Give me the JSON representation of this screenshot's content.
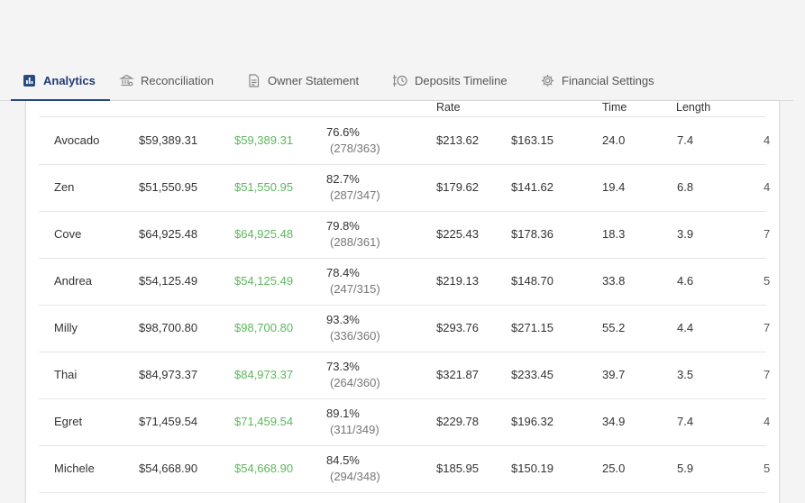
{
  "tabs": [
    {
      "label": "Analytics",
      "icon": "bar-chart-icon",
      "active": true
    },
    {
      "label": "Reconciliation",
      "icon": "bank-icon",
      "active": false
    },
    {
      "label": "Owner Statement",
      "icon": "document-icon",
      "active": false
    },
    {
      "label": "Deposits Timeline",
      "icon": "timeline-icon",
      "active": false
    },
    {
      "label": "Financial Settings",
      "icon": "gear-icon",
      "active": false
    }
  ],
  "table": {
    "headers": {
      "rate": "Rate",
      "time": "Time",
      "length": "Length"
    },
    "rows": [
      {
        "name": "Avocado",
        "revenue": "$59,389.31",
        "net": "$59,389.31",
        "occ": "76.6%",
        "occ_detail": "(278/363)",
        "rate": "$213.62",
        "revpar": "$163.15",
        "time": "24.0",
        "length": "7.4",
        "extra": "4"
      },
      {
        "name": "Zen",
        "revenue": "$51,550.95",
        "net": "$51,550.95",
        "occ": "82.7%",
        "occ_detail": "(287/347)",
        "rate": "$179.62",
        "revpar": "$141.62",
        "time": "19.4",
        "length": "6.8",
        "extra": "4"
      },
      {
        "name": "Cove",
        "revenue": "$64,925.48",
        "net": "$64,925.48",
        "occ": "79.8%",
        "occ_detail": "(288/361)",
        "rate": "$225.43",
        "revpar": "$178.36",
        "time": "18.3",
        "length": "3.9",
        "extra": "7"
      },
      {
        "name": "Andrea",
        "revenue": "$54,125.49",
        "net": "$54,125.49",
        "occ": "78.4%",
        "occ_detail": "(247/315)",
        "rate": "$219.13",
        "revpar": "$148.70",
        "time": "33.8",
        "length": "4.6",
        "extra": "5"
      },
      {
        "name": "Milly",
        "revenue": "$98,700.80",
        "net": "$98,700.80",
        "occ": "93.3%",
        "occ_detail": "(336/360)",
        "rate": "$293.76",
        "revpar": "$271.15",
        "time": "55.2",
        "length": "4.4",
        "extra": "7"
      },
      {
        "name": "Thai",
        "revenue": "$84,973.37",
        "net": "$84,973.37",
        "occ": "73.3%",
        "occ_detail": "(264/360)",
        "rate": "$321.87",
        "revpar": "$233.45",
        "time": "39.7",
        "length": "3.5",
        "extra": "7"
      },
      {
        "name": "Egret",
        "revenue": "$71,459.54",
        "net": "$71,459.54",
        "occ": "89.1%",
        "occ_detail": "(311/349)",
        "rate": "$229.78",
        "revpar": "$196.32",
        "time": "34.9",
        "length": "7.4",
        "extra": "4"
      },
      {
        "name": "Michele",
        "revenue": "$54,668.90",
        "net": "$54,668.90",
        "occ": "84.5%",
        "occ_detail": "(294/348)",
        "rate": "$185.95",
        "revpar": "$150.19",
        "time": "25.0",
        "length": "5.9",
        "extra": "5"
      }
    ]
  },
  "colors": {
    "accent": "#2a4a86",
    "positive": "#5cb85c"
  }
}
